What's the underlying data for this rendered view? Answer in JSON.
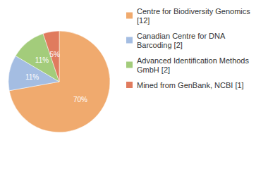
{
  "chart_data": {
    "type": "pie",
    "categories": [
      "Centre for Biodiversity Genomics [12]",
      "Canadian Centre for DNA Barcoding [2]",
      "Advanced Identification Methods GmbH [2]",
      "Mined from GenBank, NCBI [1]"
    ],
    "values": [
      70,
      11,
      11,
      5
    ],
    "value_labels": [
      "70%",
      "11%",
      "11%",
      "5%"
    ],
    "colors": [
      "#f0aa6e",
      "#a4bde2",
      "#a3cc7b",
      "#e07b5e"
    ],
    "data_labels": true,
    "legend": "right"
  }
}
